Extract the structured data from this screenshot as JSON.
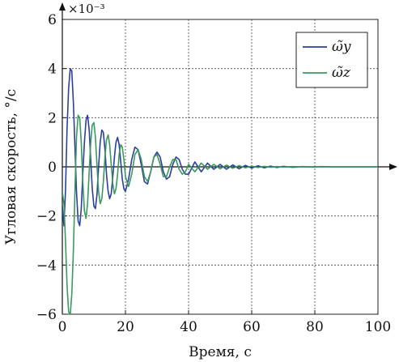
{
  "chart_data": {
    "type": "line",
    "title": "",
    "xlabel": "Время, с",
    "ylabel": "Угловая скорость, °/с",
    "scale_label": "×10⁻³",
    "xlim": [
      0,
      100
    ],
    "ylim": [
      -6,
      6
    ],
    "x_ticks": [
      "0",
      "20",
      "40",
      "60",
      "80",
      "100"
    ],
    "y_ticks": [
      "−6",
      "−4",
      "−2",
      "0",
      "2",
      "4",
      "6"
    ],
    "grid": true,
    "legend_position": "top-right",
    "series": [
      {
        "name": "ω̃y",
        "color": "#2b3f9e",
        "x": [
          0,
          0.5,
          1.0,
          1.5,
          2.0,
          2.5,
          3.0,
          3.5,
          4.0,
          4.5,
          5.0,
          5.5,
          6.0,
          6.5,
          7.0,
          7.5,
          8.0,
          8.5,
          9.0,
          9.5,
          10.0,
          10.5,
          11.0,
          11.5,
          12.0,
          12.5,
          13.0,
          13.5,
          14.0,
          14.5,
          15.0,
          15.5,
          16.0,
          16.5,
          17.0,
          17.5,
          18.0,
          18.5,
          19.0,
          19.5,
          20.0,
          21,
          22,
          23,
          24,
          25,
          26,
          27,
          28,
          29,
          30,
          31,
          32,
          33,
          34,
          35,
          36,
          37,
          38,
          39,
          40,
          42,
          44,
          46,
          48,
          50,
          52,
          54,
          56,
          58,
          60,
          62,
          64,
          66,
          68,
          70,
          73,
          76,
          79,
          82,
          85,
          88,
          91,
          94,
          97,
          100
        ],
        "y": [
          -1.6,
          -2.4,
          -1.0,
          1.5,
          3.2,
          4.0,
          3.9,
          2.6,
          0.8,
          -1.0,
          -2.2,
          -2.4,
          -1.7,
          -0.3,
          1.0,
          1.9,
          2.1,
          1.5,
          0.3,
          -0.9,
          -1.6,
          -1.7,
          -1.1,
          0.0,
          1.0,
          1.5,
          1.4,
          0.7,
          -0.3,
          -1.0,
          -1.3,
          -1.1,
          -0.4,
          0.4,
          1.0,
          1.2,
          0.9,
          0.2,
          -0.5,
          -0.9,
          -1.0,
          -0.5,
          0.3,
          0.8,
          0.7,
          0.1,
          -0.6,
          -0.7,
          -0.2,
          0.4,
          0.6,
          0.4,
          -0.2,
          -0.5,
          -0.4,
          0.1,
          0.4,
          0.3,
          -0.1,
          -0.3,
          -0.3,
          0.2,
          -0.2,
          0.15,
          -0.1,
          0.1,
          -0.1,
          0.08,
          -0.08,
          0.06,
          -0.05,
          0.04,
          -0.04,
          0.03,
          -0.03,
          0.02,
          -0.02,
          0.01,
          -0.01,
          0.01,
          0.0,
          0.0,
          0.0,
          0.0,
          0.0,
          0.0
        ]
      },
      {
        "name": "ω̃z",
        "color": "#3a9a5b",
        "x": [
          0,
          0.5,
          1.0,
          1.5,
          2.0,
          2.5,
          3.0,
          3.5,
          4.0,
          4.5,
          5.0,
          5.5,
          6.0,
          6.5,
          7.0,
          7.5,
          8.0,
          8.5,
          9.0,
          9.5,
          10.0,
          10.5,
          11.0,
          11.5,
          12.0,
          12.5,
          13.0,
          13.5,
          14.0,
          14.5,
          15.0,
          15.5,
          16.0,
          16.5,
          17.0,
          17.5,
          18.0,
          18.5,
          19.0,
          19.5,
          20.0,
          21,
          22,
          23,
          24,
          25,
          26,
          27,
          28,
          29,
          30,
          31,
          32,
          33,
          34,
          35,
          36,
          37,
          38,
          39,
          40,
          42,
          44,
          46,
          48,
          50,
          52,
          54,
          56,
          58,
          60,
          62,
          64,
          66,
          68,
          70,
          73,
          76,
          79,
          82,
          85,
          88,
          91,
          94,
          97,
          100
        ],
        "y": [
          -1.0,
          -1.5,
          -3.0,
          -4.8,
          -5.9,
          -6.0,
          -5.2,
          -3.4,
          -1.0,
          1.2,
          2.1,
          2.0,
          1.0,
          -0.6,
          -1.8,
          -2.1,
          -1.5,
          -0.2,
          1.0,
          1.7,
          1.8,
          1.2,
          0.0,
          -1.0,
          -1.5,
          -1.3,
          -0.6,
          0.4,
          1.1,
          1.3,
          0.9,
          0.1,
          -0.7,
          -1.1,
          -0.9,
          -0.3,
          0.5,
          0.9,
          0.8,
          0.3,
          -0.4,
          -0.8,
          -0.3,
          0.5,
          0.7,
          0.3,
          -0.4,
          -0.6,
          -0.2,
          0.4,
          0.5,
          0.1,
          -0.4,
          -0.4,
          0.0,
          0.3,
          0.3,
          -0.1,
          -0.3,
          -0.2,
          0.1,
          -0.2,
          0.15,
          -0.1,
          0.1,
          -0.08,
          0.07,
          -0.06,
          0.05,
          -0.04,
          0.03,
          -0.03,
          0.02,
          -0.02,
          0.01,
          -0.01,
          0.01,
          0.0,
          0.0,
          0.0,
          0.0,
          0.0,
          0.0,
          0.0,
          0.0,
          0.0
        ]
      }
    ]
  }
}
